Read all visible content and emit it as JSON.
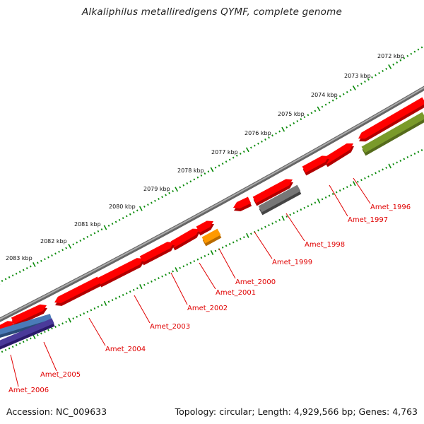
{
  "title": "Alkaliphilus metalliredigens QYMF, complete genome",
  "footer": {
    "accession": "Accession: NC_009633",
    "topology": "Topology: circular; Length: 4,929,566 bp; Genes: 4,763"
  },
  "kbp_labels": [
    "2072 kbp",
    "2073 kbp",
    "2074 kbp",
    "2075 kbp",
    "2076 kbp",
    "2077 kbp",
    "2078 kbp",
    "2079 kbp",
    "2080 kbp",
    "2081 kbp",
    "2082 kbp",
    "2083 kbp"
  ],
  "gene_labels": [
    "Amet_1996",
    "Amet_1997",
    "Amet_1998",
    "Amet_1999",
    "Amet_2000",
    "Amet_2001",
    "Amet_2002",
    "Amet_2003",
    "Amet_2004",
    "Amet_2005",
    "Amet_2006"
  ],
  "colors": {
    "backbone": "#888888",
    "gene": "#ff0000",
    "gene_label": "#e00000",
    "tick": "#0a8a0a",
    "gray_gene": "#777777",
    "orange_gene": "#ff9900",
    "olive_gene": "#7a9a2a",
    "blue_gene": "#4a7ab8",
    "purple_gene": "#4a3a9a"
  }
}
